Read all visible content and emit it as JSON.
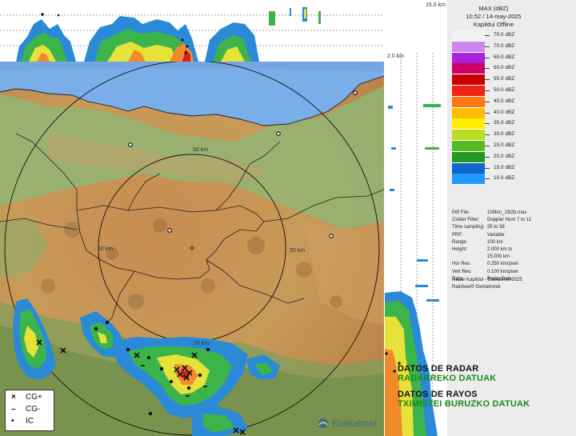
{
  "panel": {
    "product": "MAX (dBZ)",
    "datetime": "10:52 / 14-may-2025",
    "radar": "Kapildui Offline",
    "scale": [
      {
        "label": "75.0 dBZ",
        "color": "#f2f2f2"
      },
      {
        "label": "70.0 dBZ",
        "color": "#cc88ee"
      },
      {
        "label": "65.0 dBZ",
        "color": "#aa22dd"
      },
      {
        "label": "60.0 dBZ",
        "color": "#cc0066"
      },
      {
        "label": "55.0 dBZ",
        "color": "#cc0000"
      },
      {
        "label": "50.0 dBZ",
        "color": "#ee2211"
      },
      {
        "label": "45.0 dBZ",
        "color": "#ff7711"
      },
      {
        "label": "40.0 dBZ",
        "color": "#ffbb00"
      },
      {
        "label": "35.0 dBZ",
        "color": "#ffee00"
      },
      {
        "label": "30.0 dBZ",
        "color": "#bbdd22"
      },
      {
        "label": "25.0 dBZ",
        "color": "#55bb22"
      },
      {
        "label": "20.0 dBZ",
        "color": "#229922"
      },
      {
        "label": "15.0 dBZ",
        "color": "#1166cc"
      },
      {
        "label": "10.0 dBZ",
        "color": "#2299ff"
      }
    ],
    "meta": [
      {
        "k": "Pdf File:",
        "v": "100km_15t2b.max"
      },
      {
        "k": "Clutter Filter:",
        "v": "Doppler Num 7 to 11"
      },
      {
        "k": "Time sampling:",
        "v": "35 to 38"
      },
      {
        "k": "PRF:",
        "v": "Variable"
      },
      {
        "k": "Range:",
        "v": "100 km"
      },
      {
        "k": "Height:",
        "v": "2.000 km to"
      },
      {
        "k": "",
        "v": "15.000 km"
      },
      {
        "k": "Hor Res:",
        "v": "0.250 km/pixel"
      },
      {
        "k": "Vert Res:",
        "v": "0.100 km/pixel"
      },
      {
        "k": "Data:",
        "v": "Radar Data"
      }
    ],
    "credit1": "Radar Kapildui - Euskalmet 2025",
    "credit2": "Rainbow® Gematronik"
  },
  "strips": {
    "top_height_label": "15.0 km",
    "side_height_label": "2.0 km"
  },
  "map": {
    "range_labels": [
      "50 km",
      "50 km",
      "50 km",
      "50 km"
    ],
    "watermark": "Euskalmet"
  },
  "overlay": {
    "radar_es": "DATOS DE RADAR",
    "radar_eu": "RADARREKO DATUAK",
    "rayos_es": "DATOS DE RAYOS",
    "rayos_eu": "TXIMISTEI BURUZKO DATUAK"
  },
  "legend": {
    "cg_pos_symbol": "×",
    "cg_pos": "CG+",
    "cg_neg_symbol": "–",
    "cg_neg": "CG-",
    "ic_symbol": "•",
    "ic": "IC"
  },
  "colors": {
    "sea": "#7aaee8",
    "land_low": "#c48a4a",
    "land_high": "#7fb069",
    "accent_green": "#1a8a1a"
  }
}
